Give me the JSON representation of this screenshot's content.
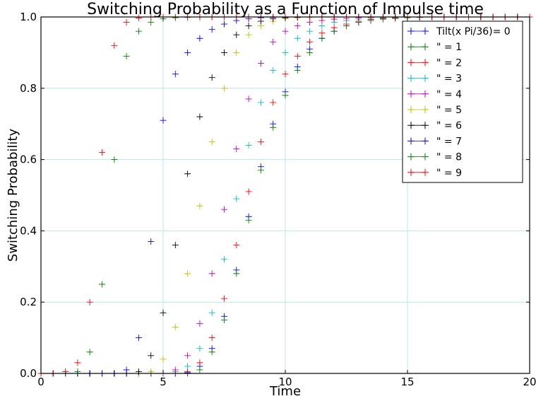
{
  "chart_data": {
    "type": "scatter",
    "title": "Switching Probability as a Function of Impulse time",
    "xlabel": "Time",
    "ylabel": "Switching Probability",
    "xlim": [
      0,
      20
    ],
    "ylim": [
      0,
      1
    ],
    "xticks": [
      "0",
      "5",
      "10",
      "15",
      "20"
    ],
    "yticks": [
      "0.0",
      "0.2",
      "0.4",
      "0.6",
      "0.8",
      "1.0"
    ],
    "grid": true,
    "marker": "+",
    "legend_position": "top-right",
    "x": [
      0.0,
      0.5,
      1.0,
      1.5,
      2.0,
      2.5,
      3.0,
      3.5,
      4.0,
      4.5,
      5.0,
      5.5,
      6.0,
      6.5,
      7.0,
      7.5,
      8.0,
      8.5,
      9.0,
      9.5,
      10.0,
      10.5,
      11.0,
      11.5,
      12.0,
      12.5,
      13.0,
      13.5,
      14.0,
      14.5,
      15.0,
      15.5,
      16.0,
      16.5,
      17.0,
      17.5,
      18.0,
      18.5,
      19.0,
      19.5,
      20.0
    ],
    "series": [
      {
        "name": "Tilt(x Pi/36)= 0",
        "color": "#0000ff",
        "values": [
          0.0,
          0.0,
          0.0,
          0.0,
          0.0,
          0.0,
          0.0,
          0.0,
          0.0,
          0.0,
          0.0,
          0.0,
          0.002,
          0.02,
          0.07,
          0.16,
          0.29,
          0.44,
          0.58,
          0.7,
          0.79,
          0.86,
          0.91,
          0.94,
          0.96,
          0.975,
          0.985,
          0.99,
          0.994,
          0.996,
          0.998,
          0.999,
          1.0,
          1.0,
          1.0,
          1.0,
          1.0,
          1.0,
          1.0,
          1.0,
          1.0
        ]
      },
      {
        "name": "\" = 1",
        "color": "#008000",
        "values": [
          0.0,
          0.0,
          0.0,
          0.0,
          0.0,
          0.0,
          0.0,
          0.0,
          0.0,
          0.0,
          0.0,
          0.0,
          0.0,
          0.01,
          0.06,
          0.15,
          0.28,
          0.43,
          0.57,
          0.69,
          0.78,
          0.85,
          0.9,
          0.94,
          0.96,
          0.975,
          0.985,
          0.99,
          0.994,
          0.996,
          0.998,
          0.999,
          1.0,
          1.0,
          1.0,
          1.0,
          1.0,
          1.0,
          1.0,
          1.0,
          1.0
        ]
      },
      {
        "name": "\" = 2",
        "color": "#ff0000",
        "values": [
          0.0,
          0.0,
          0.0,
          0.0,
          0.0,
          0.0,
          0.0,
          0.0,
          0.0,
          0.0,
          0.0,
          0.0,
          0.005,
          0.03,
          0.1,
          0.21,
          0.36,
          0.51,
          0.65,
          0.76,
          0.84,
          0.89,
          0.93,
          0.955,
          0.97,
          0.98,
          0.988,
          0.993,
          0.996,
          0.998,
          0.999,
          1.0,
          1.0,
          1.0,
          1.0,
          1.0,
          1.0,
          1.0,
          1.0,
          1.0,
          1.0
        ]
      },
      {
        "name": "\" = 3",
        "color": "#00bfbf",
        "values": [
          0.0,
          0.0,
          0.0,
          0.0,
          0.0,
          0.0,
          0.0,
          0.0,
          0.0,
          0.0,
          0.0,
          0.005,
          0.02,
          0.07,
          0.17,
          0.32,
          0.49,
          0.64,
          0.76,
          0.85,
          0.9,
          0.94,
          0.96,
          0.975,
          0.985,
          0.99,
          0.994,
          0.996,
          0.998,
          0.999,
          1.0,
          1.0,
          1.0,
          1.0,
          1.0,
          1.0,
          1.0,
          1.0,
          1.0,
          1.0,
          1.0
        ]
      },
      {
        "name": "\" = 4",
        "color": "#bf00bf",
        "values": [
          0.0,
          0.0,
          0.0,
          0.0,
          0.0,
          0.0,
          0.0,
          0.0,
          0.0,
          0.0,
          0.0,
          0.01,
          0.05,
          0.14,
          0.28,
          0.46,
          0.63,
          0.77,
          0.87,
          0.93,
          0.96,
          0.975,
          0.985,
          0.99,
          0.994,
          0.996,
          0.998,
          0.999,
          1.0,
          1.0,
          1.0,
          1.0,
          1.0,
          1.0,
          1.0,
          1.0,
          1.0,
          1.0,
          1.0,
          1.0,
          1.0
        ]
      },
      {
        "name": "\" = 5",
        "color": "#bfbf00",
        "values": [
          0.0,
          0.0,
          0.0,
          0.0,
          0.0,
          0.0,
          0.0,
          0.0,
          0.0,
          0.005,
          0.04,
          0.13,
          0.28,
          0.47,
          0.65,
          0.8,
          0.9,
          0.95,
          0.975,
          0.988,
          0.995,
          0.998,
          0.999,
          1.0,
          1.0,
          1.0,
          1.0,
          1.0,
          1.0,
          1.0,
          1.0,
          1.0,
          1.0,
          1.0,
          1.0,
          1.0,
          1.0,
          1.0,
          1.0,
          1.0,
          1.0
        ]
      },
      {
        "name": "\" = 6",
        "color": "#000000",
        "values": [
          0.0,
          0.0,
          0.0,
          0.0,
          0.0,
          0.0,
          0.0,
          0.0,
          0.005,
          0.05,
          0.17,
          0.36,
          0.56,
          0.72,
          0.83,
          0.9,
          0.95,
          0.975,
          0.988,
          0.995,
          0.998,
          0.999,
          1.0,
          1.0,
          1.0,
          1.0,
          1.0,
          1.0,
          1.0,
          1.0,
          1.0,
          1.0,
          1.0,
          1.0,
          1.0,
          1.0,
          1.0,
          1.0,
          1.0,
          1.0,
          1.0
        ]
      },
      {
        "name": "\" = 7",
        "color": "#0000ff",
        "values": [
          0.0,
          0.0,
          0.0,
          0.0,
          0.0,
          0.0,
          0.0,
          0.01,
          0.1,
          0.37,
          0.71,
          0.84,
          0.9,
          0.94,
          0.965,
          0.98,
          0.99,
          0.995,
          0.998,
          0.999,
          1.0,
          1.0,
          1.0,
          1.0,
          1.0,
          1.0,
          1.0,
          1.0,
          1.0,
          1.0,
          1.0,
          1.0,
          1.0,
          1.0,
          1.0,
          1.0,
          1.0,
          1.0,
          1.0,
          1.0,
          1.0
        ]
      },
      {
        "name": "\" = 8",
        "color": "#008000",
        "values": [
          0.0,
          0.0,
          0.0,
          0.005,
          0.06,
          0.25,
          0.6,
          0.89,
          0.96,
          0.985,
          0.995,
          0.998,
          0.999,
          1.0,
          1.0,
          1.0,
          1.0,
          1.0,
          1.0,
          1.0,
          1.0,
          1.0,
          1.0,
          1.0,
          1.0,
          1.0,
          1.0,
          1.0,
          1.0,
          1.0,
          1.0,
          1.0,
          1.0,
          1.0,
          1.0,
          1.0,
          1.0,
          1.0,
          1.0,
          1.0,
          1.0
        ]
      },
      {
        "name": "\" = 9",
        "color": "#ff0000",
        "values": [
          0.0,
          0.0,
          0.005,
          0.03,
          0.2,
          0.62,
          0.92,
          0.985,
          0.997,
          1.0,
          1.0,
          1.0,
          1.0,
          1.0,
          1.0,
          1.0,
          1.0,
          1.0,
          1.0,
          1.0,
          1.0,
          1.0,
          1.0,
          1.0,
          1.0,
          1.0,
          1.0,
          1.0,
          1.0,
          1.0,
          1.0,
          1.0,
          1.0,
          1.0,
          1.0,
          1.0,
          1.0,
          1.0,
          1.0,
          1.0,
          1.0
        ]
      }
    ]
  }
}
